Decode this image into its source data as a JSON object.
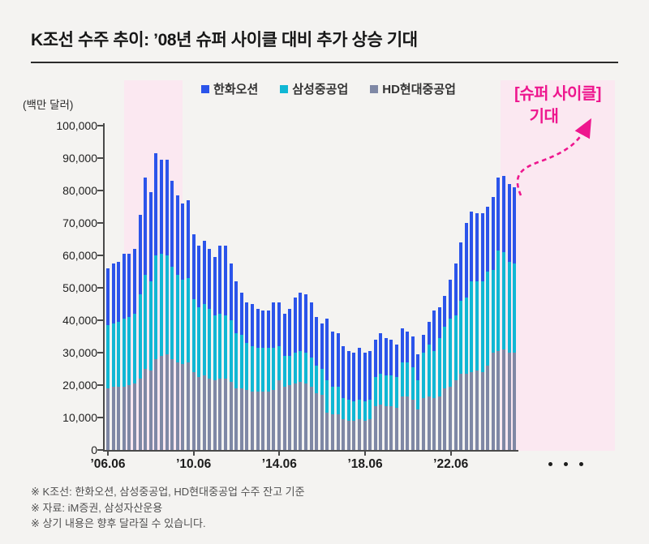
{
  "title": "K조선 수주 추이: ’08년 슈퍼 사이클 대비 추가 상승 기대",
  "legend": [
    {
      "label": "한화오션",
      "color": "#2B54EA"
    },
    {
      "label": "삼성중공업",
      "color": "#10B7D4"
    },
    {
      "label": "HD현대중공업",
      "color": "#7F88A5"
    }
  ],
  "y_axis_unit": "(백만 달러)",
  "annotation": {
    "line1": "[슈퍼 사이클]",
    "line2": "기대",
    "color": "#EE168E"
  },
  "footnotes": [
    "※ K조선: 한화오션, 삼성중공업, HD현대중공업 수주 잔고 기준",
    "※ 자료: iM증권, 삼성자산운용",
    "※ 상기 내용은 향후 달라질 수 있습니다."
  ],
  "chart_data": {
    "type": "bar",
    "stacked": true,
    "unit": "million USD",
    "x_start": "2006.06",
    "x_end": "2025.06",
    "frequency": "quarterly",
    "ylim": [
      0,
      100000
    ],
    "y_tick_step": 10000,
    "y_tick_labels": [
      "100,000",
      "90,000",
      "80,000",
      "70,000",
      "60,000",
      "50,000",
      "40,000",
      "30,000",
      "20,000",
      "10,000",
      "0"
    ],
    "x_tick_positions": [
      0,
      16,
      32,
      48,
      64
    ],
    "x_tick_labels": [
      "’06.06",
      "’10.06",
      "’14.06",
      "’18.06",
      "’22.06"
    ],
    "x_axis_ellipsis": true,
    "grid": false,
    "legend_position": "top-center",
    "highlight_bands": [
      {
        "name": "2008-super-cycle",
        "start_index": 3,
        "end_index": 14
      },
      {
        "name": "expected-super-cycle",
        "start_index": 73,
        "end_index": 76,
        "extends_into_future": true
      }
    ],
    "series": [
      {
        "name": "HD현대중공업",
        "color": "#7F88A5",
        "stack_order": "bottom",
        "values": [
          19000,
          19500,
          19500,
          19500,
          20000,
          20500,
          22000,
          25000,
          24500,
          28000,
          29000,
          29500,
          28000,
          27000,
          26500,
          27000,
          24000,
          22500,
          23000,
          22000,
          21500,
          22000,
          22000,
          21000,
          19000,
          19000,
          18500,
          18000,
          18000,
          18000,
          18000,
          18500,
          21500,
          19500,
          20000,
          20500,
          21000,
          20500,
          19500,
          17500,
          17000,
          11500,
          11000,
          11000,
          9500,
          9000,
          9000,
          9500,
          9000,
          9500,
          13500,
          14000,
          13500,
          13500,
          13000,
          16500,
          16500,
          15500,
          12500,
          16000,
          16500,
          16000,
          16500,
          19000,
          19500,
          21500,
          23500,
          23500,
          24000,
          24500,
          24000,
          26000,
          30000,
          30500,
          31000,
          30000,
          30000
        ]
      },
      {
        "name": "삼성중공업",
        "color": "#10B7D4",
        "stack_order": "middle",
        "values": [
          19500,
          19500,
          20000,
          21000,
          21000,
          21500,
          26000,
          29000,
          27500,
          32000,
          31500,
          30500,
          28500,
          27000,
          26000,
          26000,
          22500,
          21500,
          22000,
          21500,
          20000,
          20000,
          19500,
          19000,
          17000,
          16500,
          14500,
          14000,
          13500,
          13500,
          13500,
          13000,
          10500,
          9500,
          9000,
          9500,
          9500,
          9500,
          9000,
          8500,
          8000,
          10000,
          8500,
          8500,
          6500,
          6500,
          6000,
          6000,
          6000,
          6000,
          9000,
          9500,
          9500,
          9500,
          9500,
          10500,
          10500,
          10000,
          9000,
          14000,
          16000,
          14500,
          18000,
          19000,
          21000,
          20000,
          22500,
          23500,
          28000,
          27500,
          28000,
          29000,
          25500,
          31000,
          30000,
          28000,
          27500
        ]
      },
      {
        "name": "한화오션",
        "color": "#2B54EA",
        "stack_order": "top",
        "values": [
          17500,
          18500,
          18500,
          20000,
          19500,
          20000,
          24500,
          30000,
          27500,
          31500,
          29000,
          29500,
          26500,
          24500,
          23500,
          24000,
          20000,
          19000,
          19500,
          18500,
          18000,
          21000,
          21500,
          17500,
          16000,
          13000,
          12500,
          13000,
          12000,
          11500,
          11500,
          14000,
          13500,
          13000,
          14500,
          17000,
          18000,
          18000,
          17000,
          15000,
          14000,
          19000,
          17000,
          16500,
          16000,
          15000,
          15000,
          16000,
          15000,
          15000,
          11500,
          12500,
          11500,
          11000,
          10000,
          10500,
          9500,
          9500,
          8000,
          5500,
          7000,
          12500,
          9500,
          9500,
          12000,
          16000,
          18000,
          23000,
          21500,
          21000,
          21000,
          20000,
          22500,
          22500,
          23500,
          24000,
          23500
        ]
      }
    ]
  }
}
